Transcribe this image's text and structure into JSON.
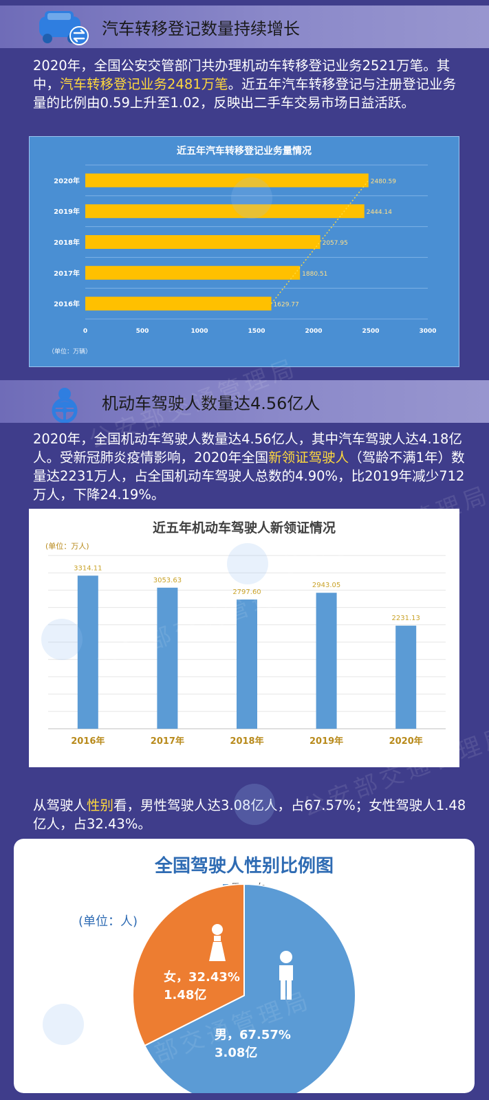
{
  "colors": {
    "page_bg": "#3f3d8b",
    "highlight": "#ffd93d",
    "bar_orange": "#ffc000",
    "bar_blue": "#5b9bd5",
    "pie_male": "#5b9bd5",
    "pie_female": "#ed7d31",
    "chart1_bg": "#4a8fd3",
    "value_label": "#c9a227"
  },
  "section1": {
    "title": "汽车转移登记数量持续增长",
    "icon": "car-transfer-icon",
    "paragraph": {
      "before": "2020年，全国公安交管部门共办理机动车转移登记业务2521万笔。其中，",
      "highlight": "汽车转移登记业务2481万笔",
      "after": "。近五年汽车转移登记与注册登记业务量的比例由0.59上升至1.02，反映出二手车交易市场日益活跃。"
    }
  },
  "section2": {
    "title": "机动车驾驶人数量达4.56亿人",
    "icon": "steering-wheel-driver-icon",
    "paragraph": {
      "before": "2020年，全国机动车驾驶人数量达4.56亿人，其中汽车驾驶人达4.18亿人。受新冠肺炎疫情影响，2020年全国",
      "highlight": "新领证驾驶人",
      "after": "（驾龄不满1年）数量达2231万人，占全国机动车驾驶人总数的4.90%，比2019年减少712万人，下降24.19%。"
    }
  },
  "gender_paragraph": {
    "before": "从驾驶人",
    "highlight": "性别",
    "after": "看，男性驾驶人达3.08亿人，占67.57%；女性驾驶人1.48亿人，占32.43%。"
  },
  "watermark_text": "公安部交通管理局",
  "chart_data": [
    {
      "type": "bar",
      "orientation": "horizontal",
      "title": "近五年汽车转移登记业务量情况",
      "unit_note": "（单位：万辆）",
      "categories": [
        "2020年",
        "2019年",
        "2018年",
        "2017年",
        "2016年"
      ],
      "values": [
        2480.59,
        2444.14,
        2057.95,
        1880.51,
        1629.77
      ],
      "value_labels": [
        "2480.59",
        "2444.14",
        "2057.95",
        "1880.51",
        "1629.77"
      ],
      "x_ticks": [
        "0",
        "500",
        "1000",
        "1500",
        "2000",
        "2500",
        "3000"
      ],
      "xlim": [
        0,
        3000
      ],
      "grid": true,
      "trendline": "dotted"
    },
    {
      "type": "bar",
      "orientation": "vertical",
      "title": "近五年机动车驾驶人新领证情况",
      "unit_note": "(单位：万人)",
      "categories": [
        "2016年",
        "2017年",
        "2018年",
        "2019年",
        "2020年"
      ],
      "values": [
        3314.11,
        3053.63,
        2797.6,
        2943.05,
        2231.13
      ],
      "value_labels": [
        "3314.11",
        "3053.63",
        "2797.60",
        "2943.05",
        "2231.13"
      ],
      "ylim": [
        0,
        3750
      ],
      "grid": true
    },
    {
      "type": "pie",
      "title": "全国驾驶人性别比例图",
      "unit_note": "(单位：人)",
      "legend": [
        "男",
        "女"
      ],
      "legend_position": "top",
      "slices": [
        {
          "name": "男",
          "percent": 67.57,
          "label_line1": "男，67.57%",
          "label_line2": "3.08亿",
          "icon": "man-icon"
        },
        {
          "name": "女",
          "percent": 32.43,
          "label_line1": "女，32.43%",
          "label_line2": "1.48亿",
          "icon": "woman-icon"
        }
      ]
    }
  ]
}
